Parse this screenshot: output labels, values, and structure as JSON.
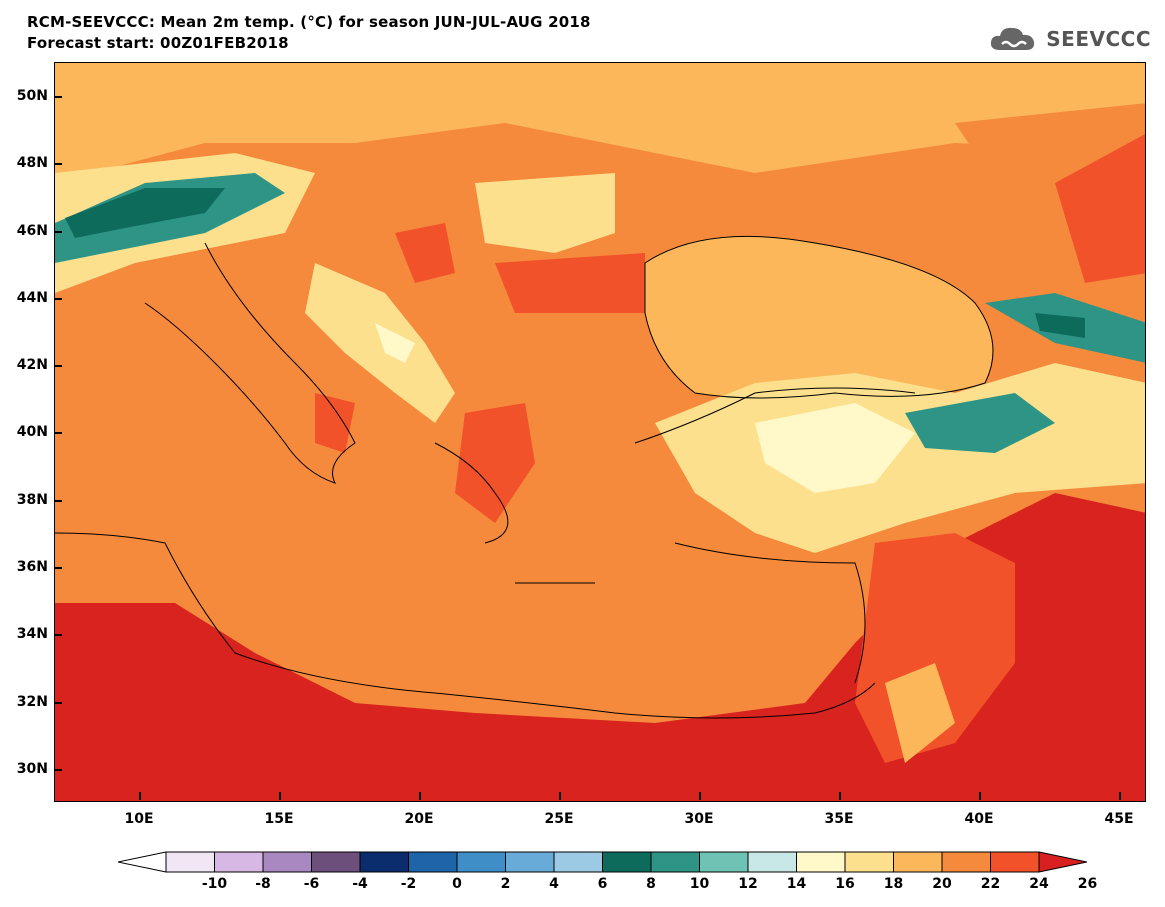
{
  "header": {
    "title": "RCM-SEEVCCC: Mean 2m temp. (°C) for season JUN-JUL-AUG 2018",
    "subtitle": "Forecast start: 00Z01FEB2018",
    "logo_text": "SEEVCCC"
  },
  "axes": {
    "lat_labels": [
      "50N",
      "48N",
      "46N",
      "44N",
      "42N",
      "40N",
      "38N",
      "36N",
      "34N",
      "32N",
      "30N"
    ],
    "lon_labels": [
      "10E",
      "15E",
      "20E",
      "25E",
      "30E",
      "35E",
      "40E",
      "45E"
    ],
    "lat_range": [
      29,
      51
    ],
    "lon_range": [
      7,
      46
    ]
  },
  "colorbar": {
    "labels": [
      "-10",
      "-8",
      "-6",
      "-4",
      "-2",
      "0",
      "2",
      "4",
      "6",
      "8",
      "10",
      "12",
      "14",
      "16",
      "18",
      "20",
      "22",
      "24",
      "26"
    ],
    "colors": [
      "#f1e6f4",
      "#d7b8e4",
      "#a988c2",
      "#6d4f7c",
      "#0b2d6e",
      "#1e64a8",
      "#3f8ec7",
      "#69abd8",
      "#9ccae5",
      "#0d6b5c",
      "#2e9486",
      "#6fc3b4",
      "#c7e8e6",
      "#fff8c9",
      "#fde08d",
      "#fbb75a",
      "#f58a3c",
      "#f2522a",
      "#d7201f"
    ],
    "under_color": "#ffffff",
    "over_color": "#d7201f"
  },
  "legend_colors": {
    "sea": "#f5893c",
    "hot": "#d9231f",
    "warm": "#f2522a",
    "mild": "#fbb75a",
    "cool": "#fde08d",
    "cold_teal": "#0d6b5c",
    "mid_teal": "#2e9486"
  }
}
